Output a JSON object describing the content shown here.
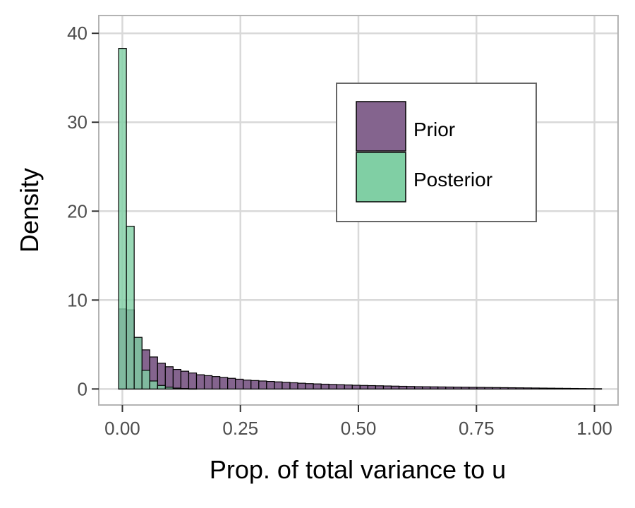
{
  "chart_data": {
    "type": "bar",
    "subtype": "histogram",
    "xlabel": "Prop. of total variance to u",
    "ylabel": "Density",
    "xlim": [
      -0.05,
      1.05
    ],
    "ylim": [
      -1.8,
      42
    ],
    "x_ticks": [
      0.0,
      0.25,
      0.5,
      0.75,
      1.0
    ],
    "x_tick_labels": [
      "0.00",
      "0.25",
      "0.50",
      "0.75",
      "1.00"
    ],
    "y_ticks": [
      0,
      10,
      20,
      30,
      40
    ],
    "y_tick_labels": [
      "0",
      "10",
      "20",
      "30",
      "40"
    ],
    "grid": true,
    "legend_position": "top-right",
    "bin_start": -0.008,
    "bin_width": 0.0165,
    "series": [
      {
        "name": "Prior",
        "color": "#84648e",
        "fill_opacity": 1,
        "values": [
          9.0,
          8.9,
          5.8,
          4.4,
          3.6,
          2.9,
          2.5,
          2.2,
          2.0,
          1.8,
          1.6,
          1.5,
          1.4,
          1.3,
          1.2,
          1.1,
          1.0,
          0.95,
          0.9,
          0.85,
          0.8,
          0.75,
          0.7,
          0.65,
          0.6,
          0.57,
          0.54,
          0.51,
          0.48,
          0.45,
          0.42,
          0.4,
          0.38,
          0.36,
          0.34,
          0.32,
          0.3,
          0.28,
          0.26,
          0.25,
          0.24,
          0.23,
          0.22,
          0.21,
          0.2,
          0.19,
          0.18,
          0.17,
          0.16,
          0.15,
          0.14,
          0.13,
          0.12,
          0.11,
          0.1,
          0.09,
          0.08,
          0.07,
          0.06,
          0.05,
          0.04,
          0.03
        ]
      },
      {
        "name": "Posterior",
        "color": "#80cfa4",
        "fill_opacity": 0.8,
        "values": [
          38.3,
          18.3,
          5.8,
          2.1,
          0.9,
          0.4,
          0.2,
          0.1,
          0.05,
          0.02
        ]
      }
    ]
  },
  "colors": {
    "panel_border": "#b3b3b3",
    "grid": "#d9d9d9",
    "bar_outline": "#000000",
    "legend_border": "#666666"
  }
}
